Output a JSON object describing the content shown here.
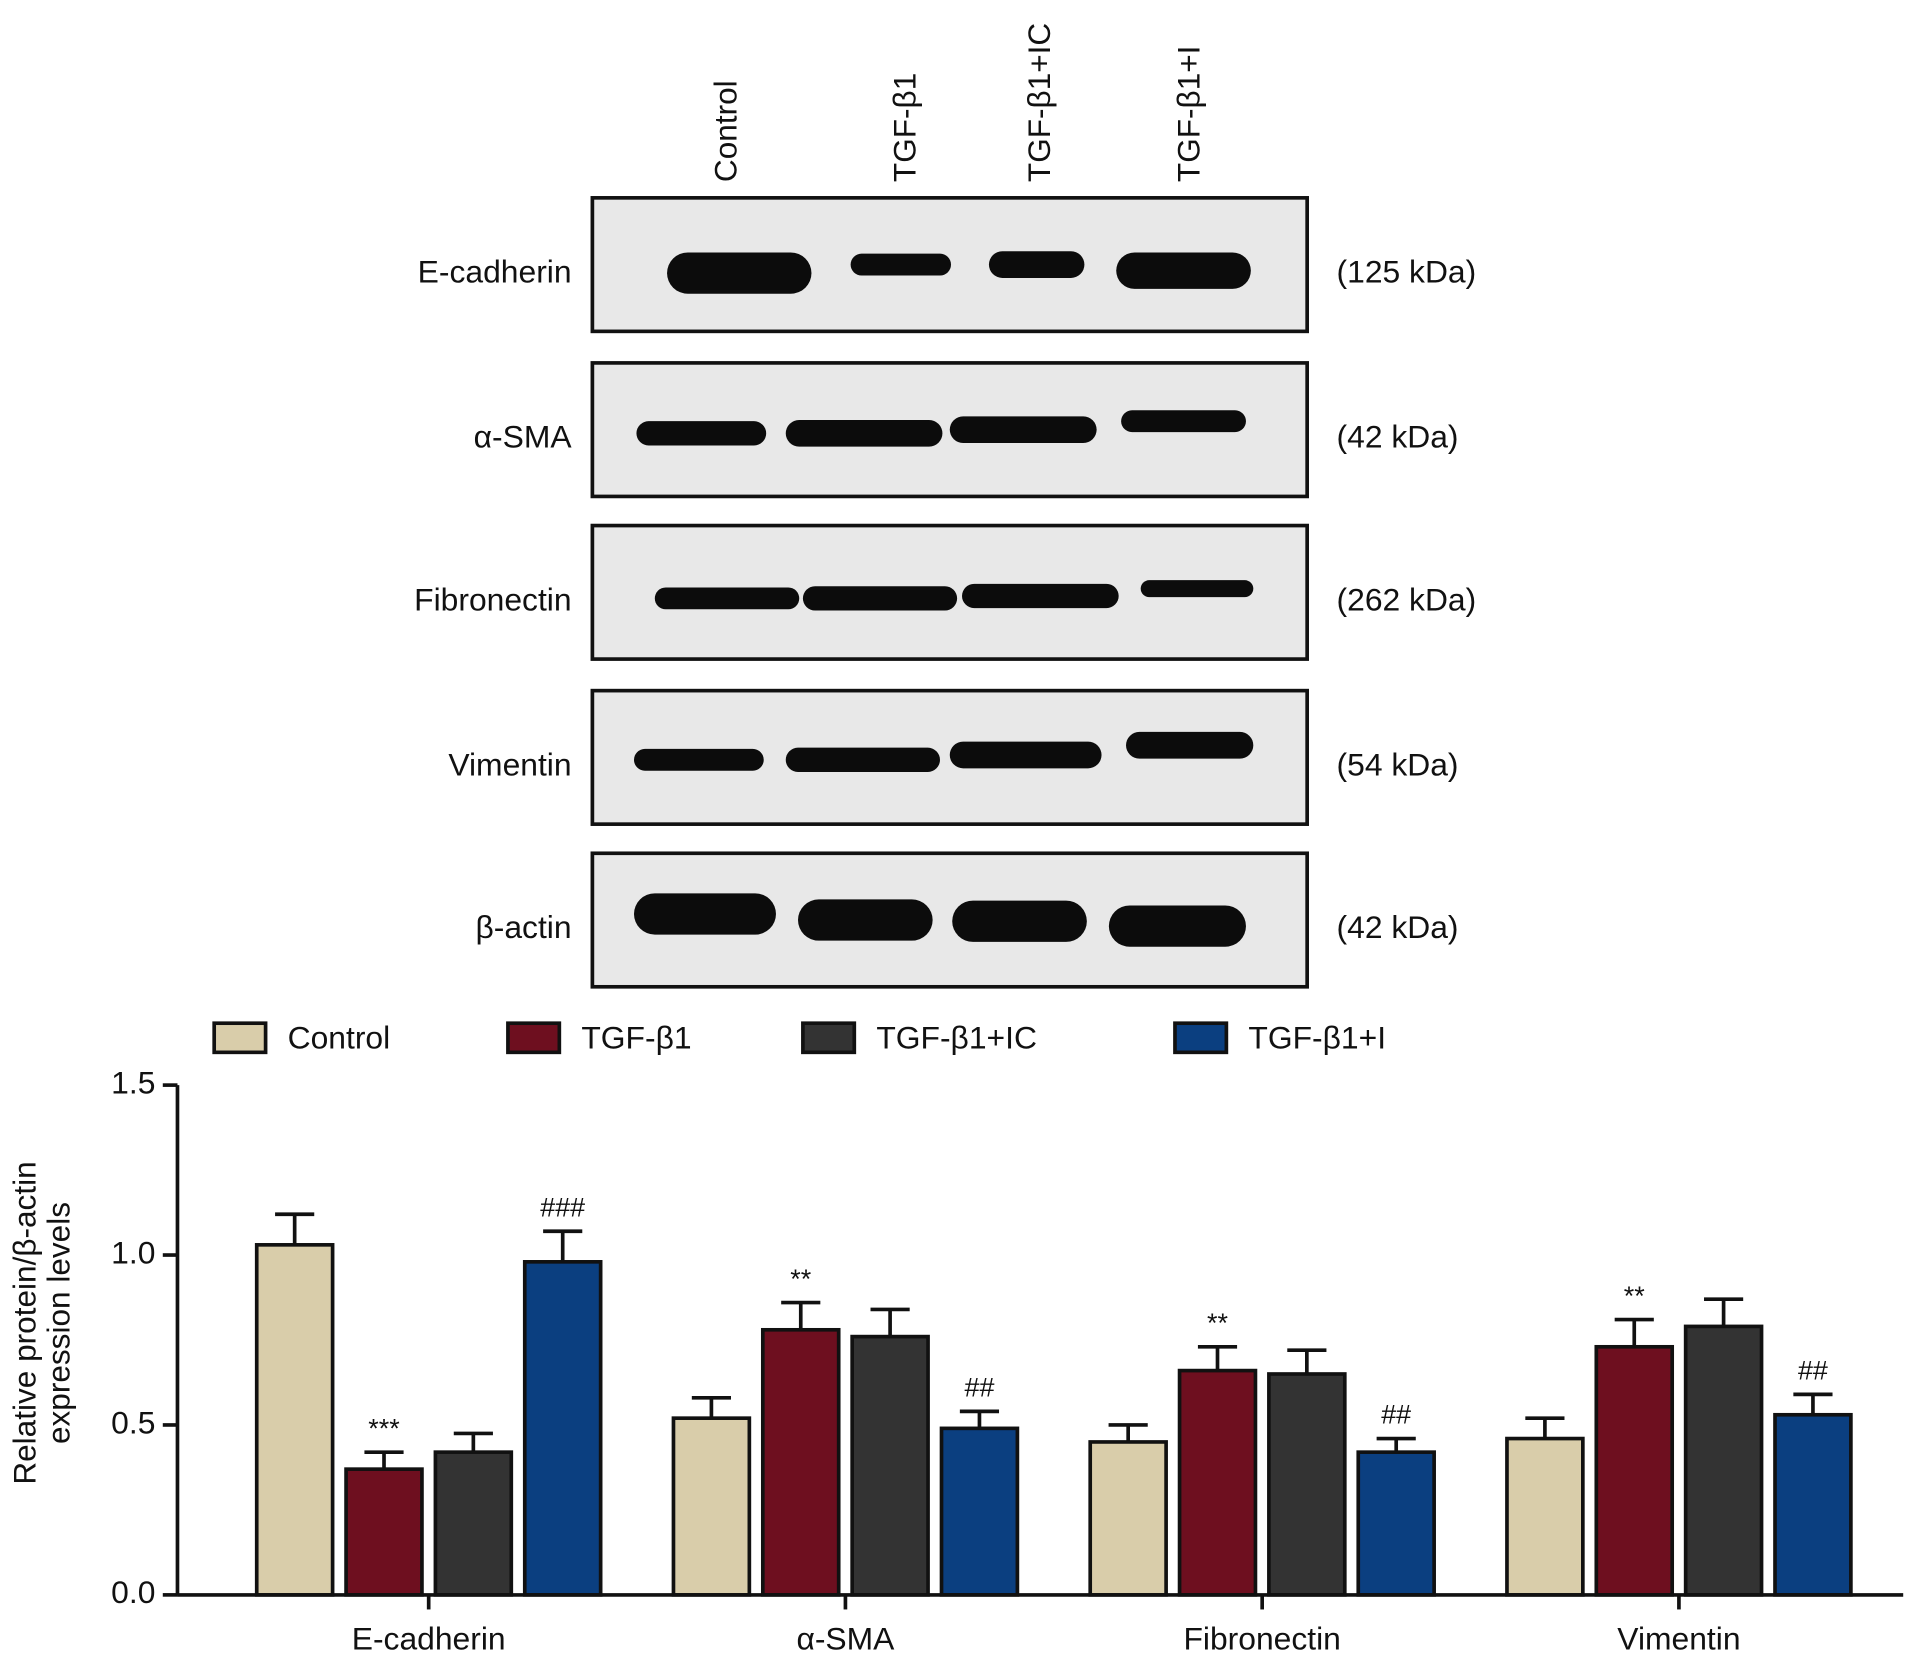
{
  "blot": {
    "lanes": [
      "Control",
      "TGF-β1",
      "TGF-β1+IC",
      "TGF-β1+I"
    ],
    "rows": [
      {
        "label": "E-cadherin",
        "size": "(125 kDa)"
      },
      {
        "label": "α-SMA",
        "size": "(42 kDa)"
      },
      {
        "label": "Fibronectin",
        "size": "(262 kDa)"
      },
      {
        "label": "Vimentin",
        "size": "(54 kDa)"
      },
      {
        "label": "β-actin",
        "size": "(42 kDa)"
      }
    ]
  },
  "chart_data": {
    "type": "bar",
    "y_label": [
      "Relative protein/β-actin",
      "expression levels"
    ],
    "categories": [
      "E-cadherin",
      "α-SMA",
      "Fibronectin",
      "Vimentin"
    ],
    "series": [
      {
        "name": "Control",
        "color": "#d9cdaa",
        "values": [
          1.03,
          0.52,
          0.45,
          0.46
        ],
        "errors": [
          0.09,
          0.06,
          0.05,
          0.06
        ],
        "annotations": [
          null,
          null,
          null,
          null
        ]
      },
      {
        "name": "TGF-β1",
        "color": "#6e0f1f",
        "values": [
          0.37,
          0.78,
          0.66,
          0.73
        ],
        "errors": [
          0.05,
          0.08,
          0.07,
          0.08
        ],
        "annotations": [
          "***",
          "**",
          "**",
          "**"
        ]
      },
      {
        "name": "TGF-β1+IC",
        "color": "#333333",
        "values": [
          0.42,
          0.76,
          0.65,
          0.79
        ],
        "errors": [
          0.055,
          0.08,
          0.07,
          0.08
        ],
        "annotations": [
          null,
          null,
          null,
          null
        ]
      },
      {
        "name": "TGF-β1+I",
        "color": "#0b3f80",
        "values": [
          0.98,
          0.49,
          0.42,
          0.53
        ],
        "errors": [
          0.09,
          0.05,
          0.04,
          0.06
        ],
        "annotations": [
          "###",
          "##",
          "##",
          "##"
        ]
      }
    ],
    "ylim": [
      0,
      1.5
    ],
    "yticks": [
      {
        "value": 0,
        "label": "0.0"
      },
      {
        "value": 0.5,
        "label": "0.5"
      },
      {
        "value": 1,
        "label": "1.0"
      },
      {
        "value": 1.5,
        "label": "1.5"
      }
    ]
  }
}
